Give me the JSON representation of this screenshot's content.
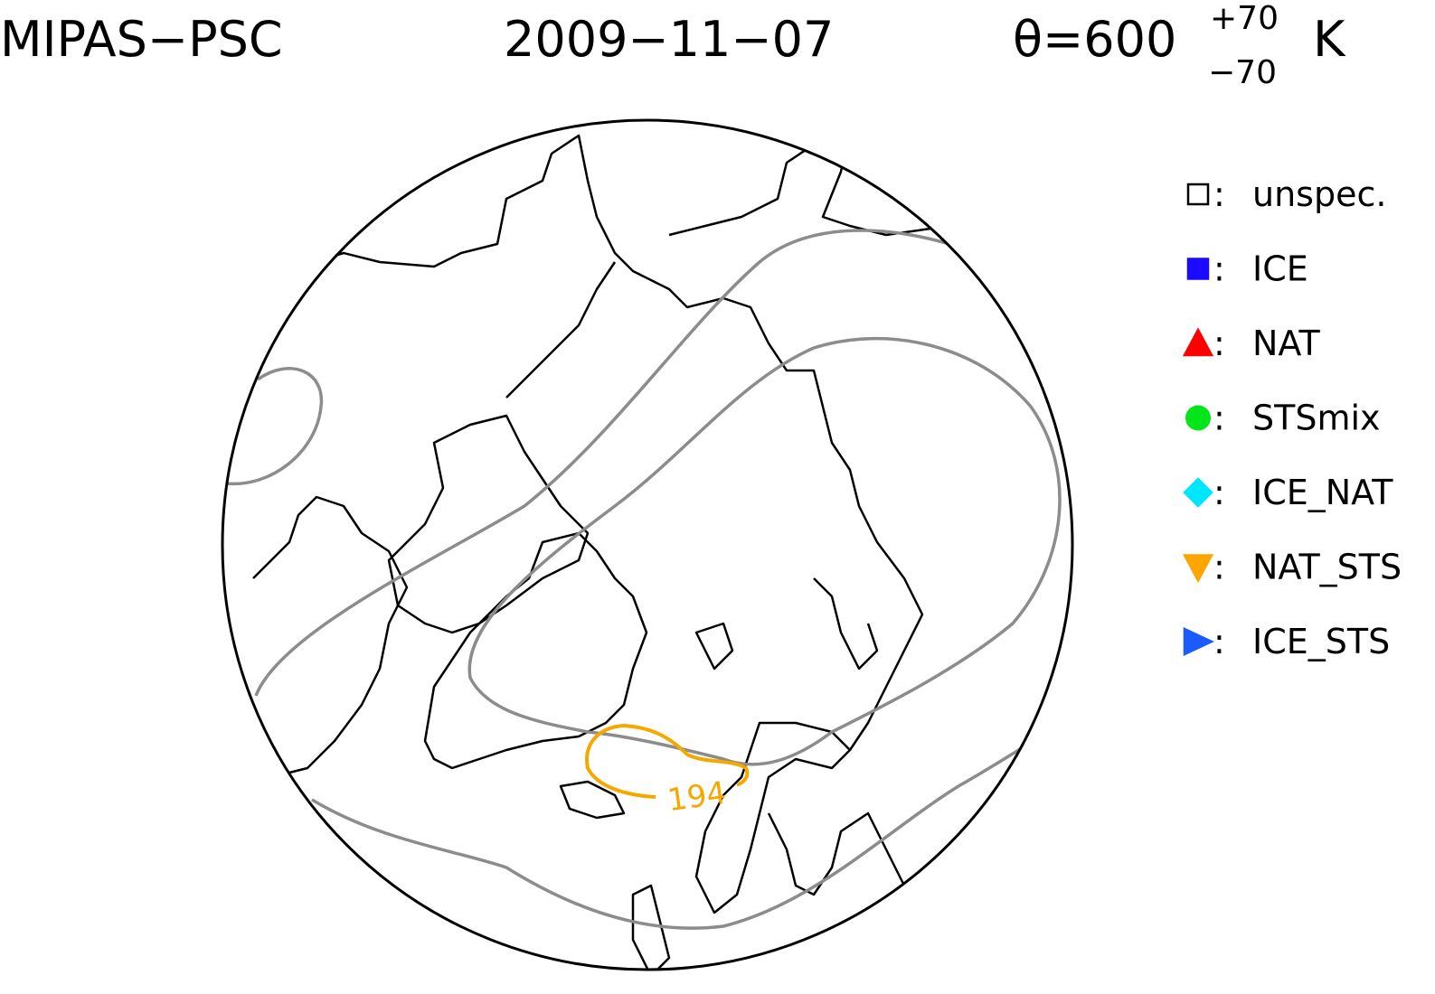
{
  "header": {
    "instrument": "MIPAS−PSC",
    "date": "2009−11−07",
    "theta": "θ=600",
    "theta_upper": "+70",
    "theta_lower": "−70",
    "unit": "K"
  },
  "legend": [
    {
      "label": "unspec.",
      "marker": "square",
      "color": "#ffffff"
    },
    {
      "label": "ICE",
      "marker": "square",
      "color": "#1a0aff"
    },
    {
      "label": "NAT",
      "marker": "triangle",
      "color": "#ff0000"
    },
    {
      "label": "STSmix",
      "marker": "circle",
      "color": "#00e61a"
    },
    {
      "label": "ICE_NAT",
      "marker": "diamond",
      "color": "#00e6ff"
    },
    {
      "label": "NAT_STS",
      "marker": "triangle-down",
      "color": "#ffa500"
    },
    {
      "label": "ICE_STS",
      "marker": "triangle-right",
      "color": "#1a5aff"
    }
  ],
  "contour_labels": [
    194
  ]
}
